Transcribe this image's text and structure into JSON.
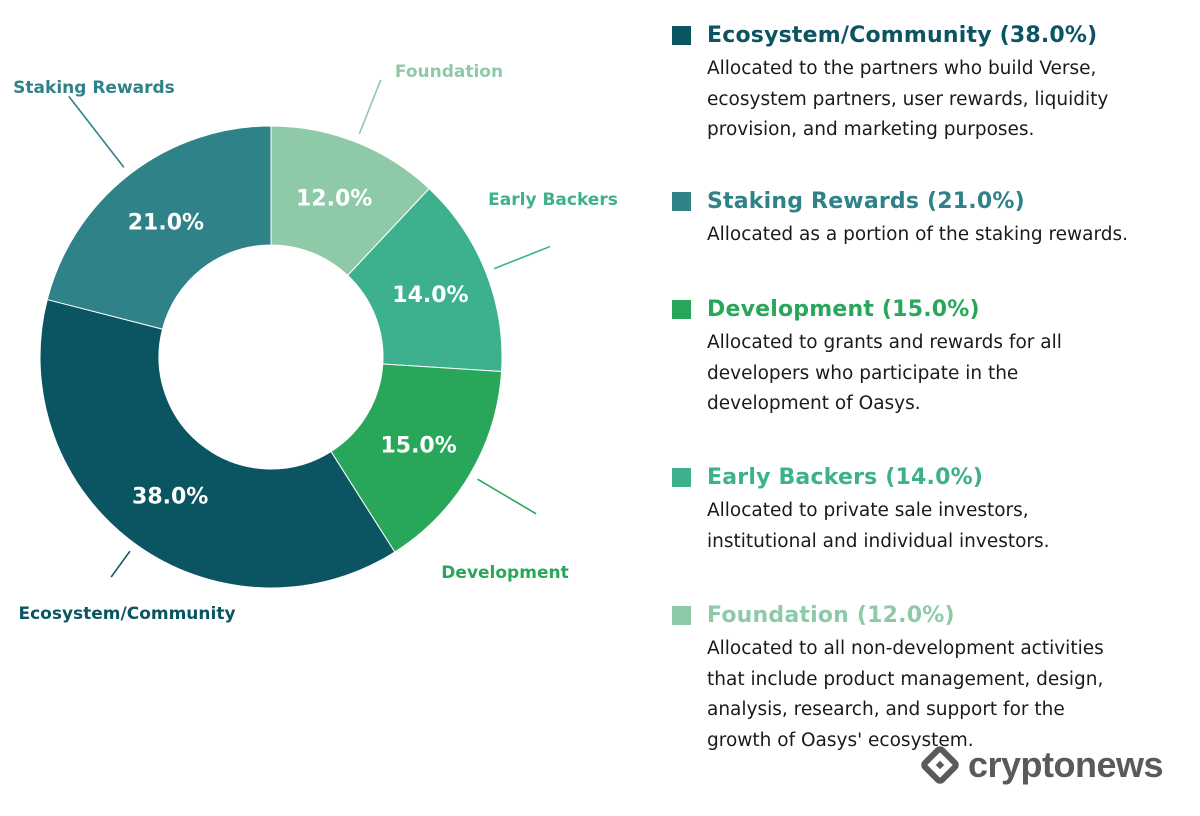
{
  "chart_data": {
    "type": "pie",
    "title": "",
    "categories": [
      "Foundation",
      "Early Backers",
      "Development",
      "Ecosystem/Community",
      "Staking Rewards"
    ],
    "values": [
      12.0,
      14.0,
      15.0,
      38.0,
      21.0
    ],
    "value_labels": [
      "12.0%",
      "14.0%",
      "15.0%",
      "38.0%",
      "21.0%"
    ],
    "colors": [
      "#8fcaa8",
      "#3db08e",
      "#28a75a",
      "#0b5562",
      "#2f8287"
    ],
    "label_colors": [
      "#8fcaa8",
      "#3db08e",
      "#28a75a",
      "#0b5562",
      "#2f8287"
    ],
    "donut": true,
    "legend_position": "right"
  },
  "legend": [
    {
      "title": "Ecosystem/Community (38.0%)",
      "color": "#0b5562",
      "lines": [
        "Allocated to the partners who build Verse,",
        "ecosystem partners, user rewards, liquidity",
        "provision, and marketing purposes."
      ]
    },
    {
      "title": "Staking Rewards (21.0%)",
      "color": "#2f8287",
      "lines": [
        "Allocated as a portion of the staking rewards."
      ]
    },
    {
      "title": "Development (15.0%)",
      "color": "#28a75a",
      "lines": [
        "Allocated to grants and rewards for all",
        "developers who participate in the",
        "development of Oasys."
      ]
    },
    {
      "title": "Early Backers (14.0%)",
      "color": "#3db08e",
      "lines": [
        "Allocated to private sale investors,",
        "institutional and individual investors."
      ]
    },
    {
      "title": "Foundation (12.0%)",
      "color": "#8fcaa8",
      "lines": [
        "Allocated to all non-development activities",
        "that include product management, design,",
        "analysis, research, and support for the",
        "growth of Oasys' ecosystem."
      ]
    }
  ],
  "watermark": {
    "text": "cryptonews"
  }
}
